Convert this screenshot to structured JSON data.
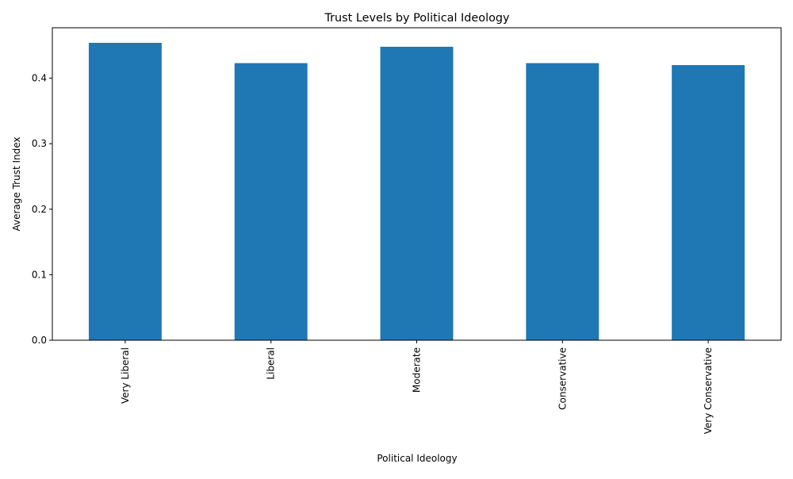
{
  "chart_data": {
    "type": "bar",
    "title": "Trust Levels by Political Ideology",
    "xlabel": "Political Ideology",
    "ylabel": "Average Trust Index",
    "categories": [
      "Very Liberal",
      "Liberal",
      "Moderate",
      "Conservative",
      "Very Conservative"
    ],
    "values": [
      0.454,
      0.423,
      0.448,
      0.423,
      0.42
    ],
    "ylim": [
      0,
      0.477
    ],
    "yticks": [
      0.0,
      0.1,
      0.2,
      0.3,
      0.4
    ],
    "ytick_labels": [
      "0.0",
      "0.1",
      "0.2",
      "0.3",
      "0.4"
    ],
    "bar_color": "#1f77b4",
    "x_tick_rotation": "vertical",
    "grid": false,
    "legend": "none"
  }
}
